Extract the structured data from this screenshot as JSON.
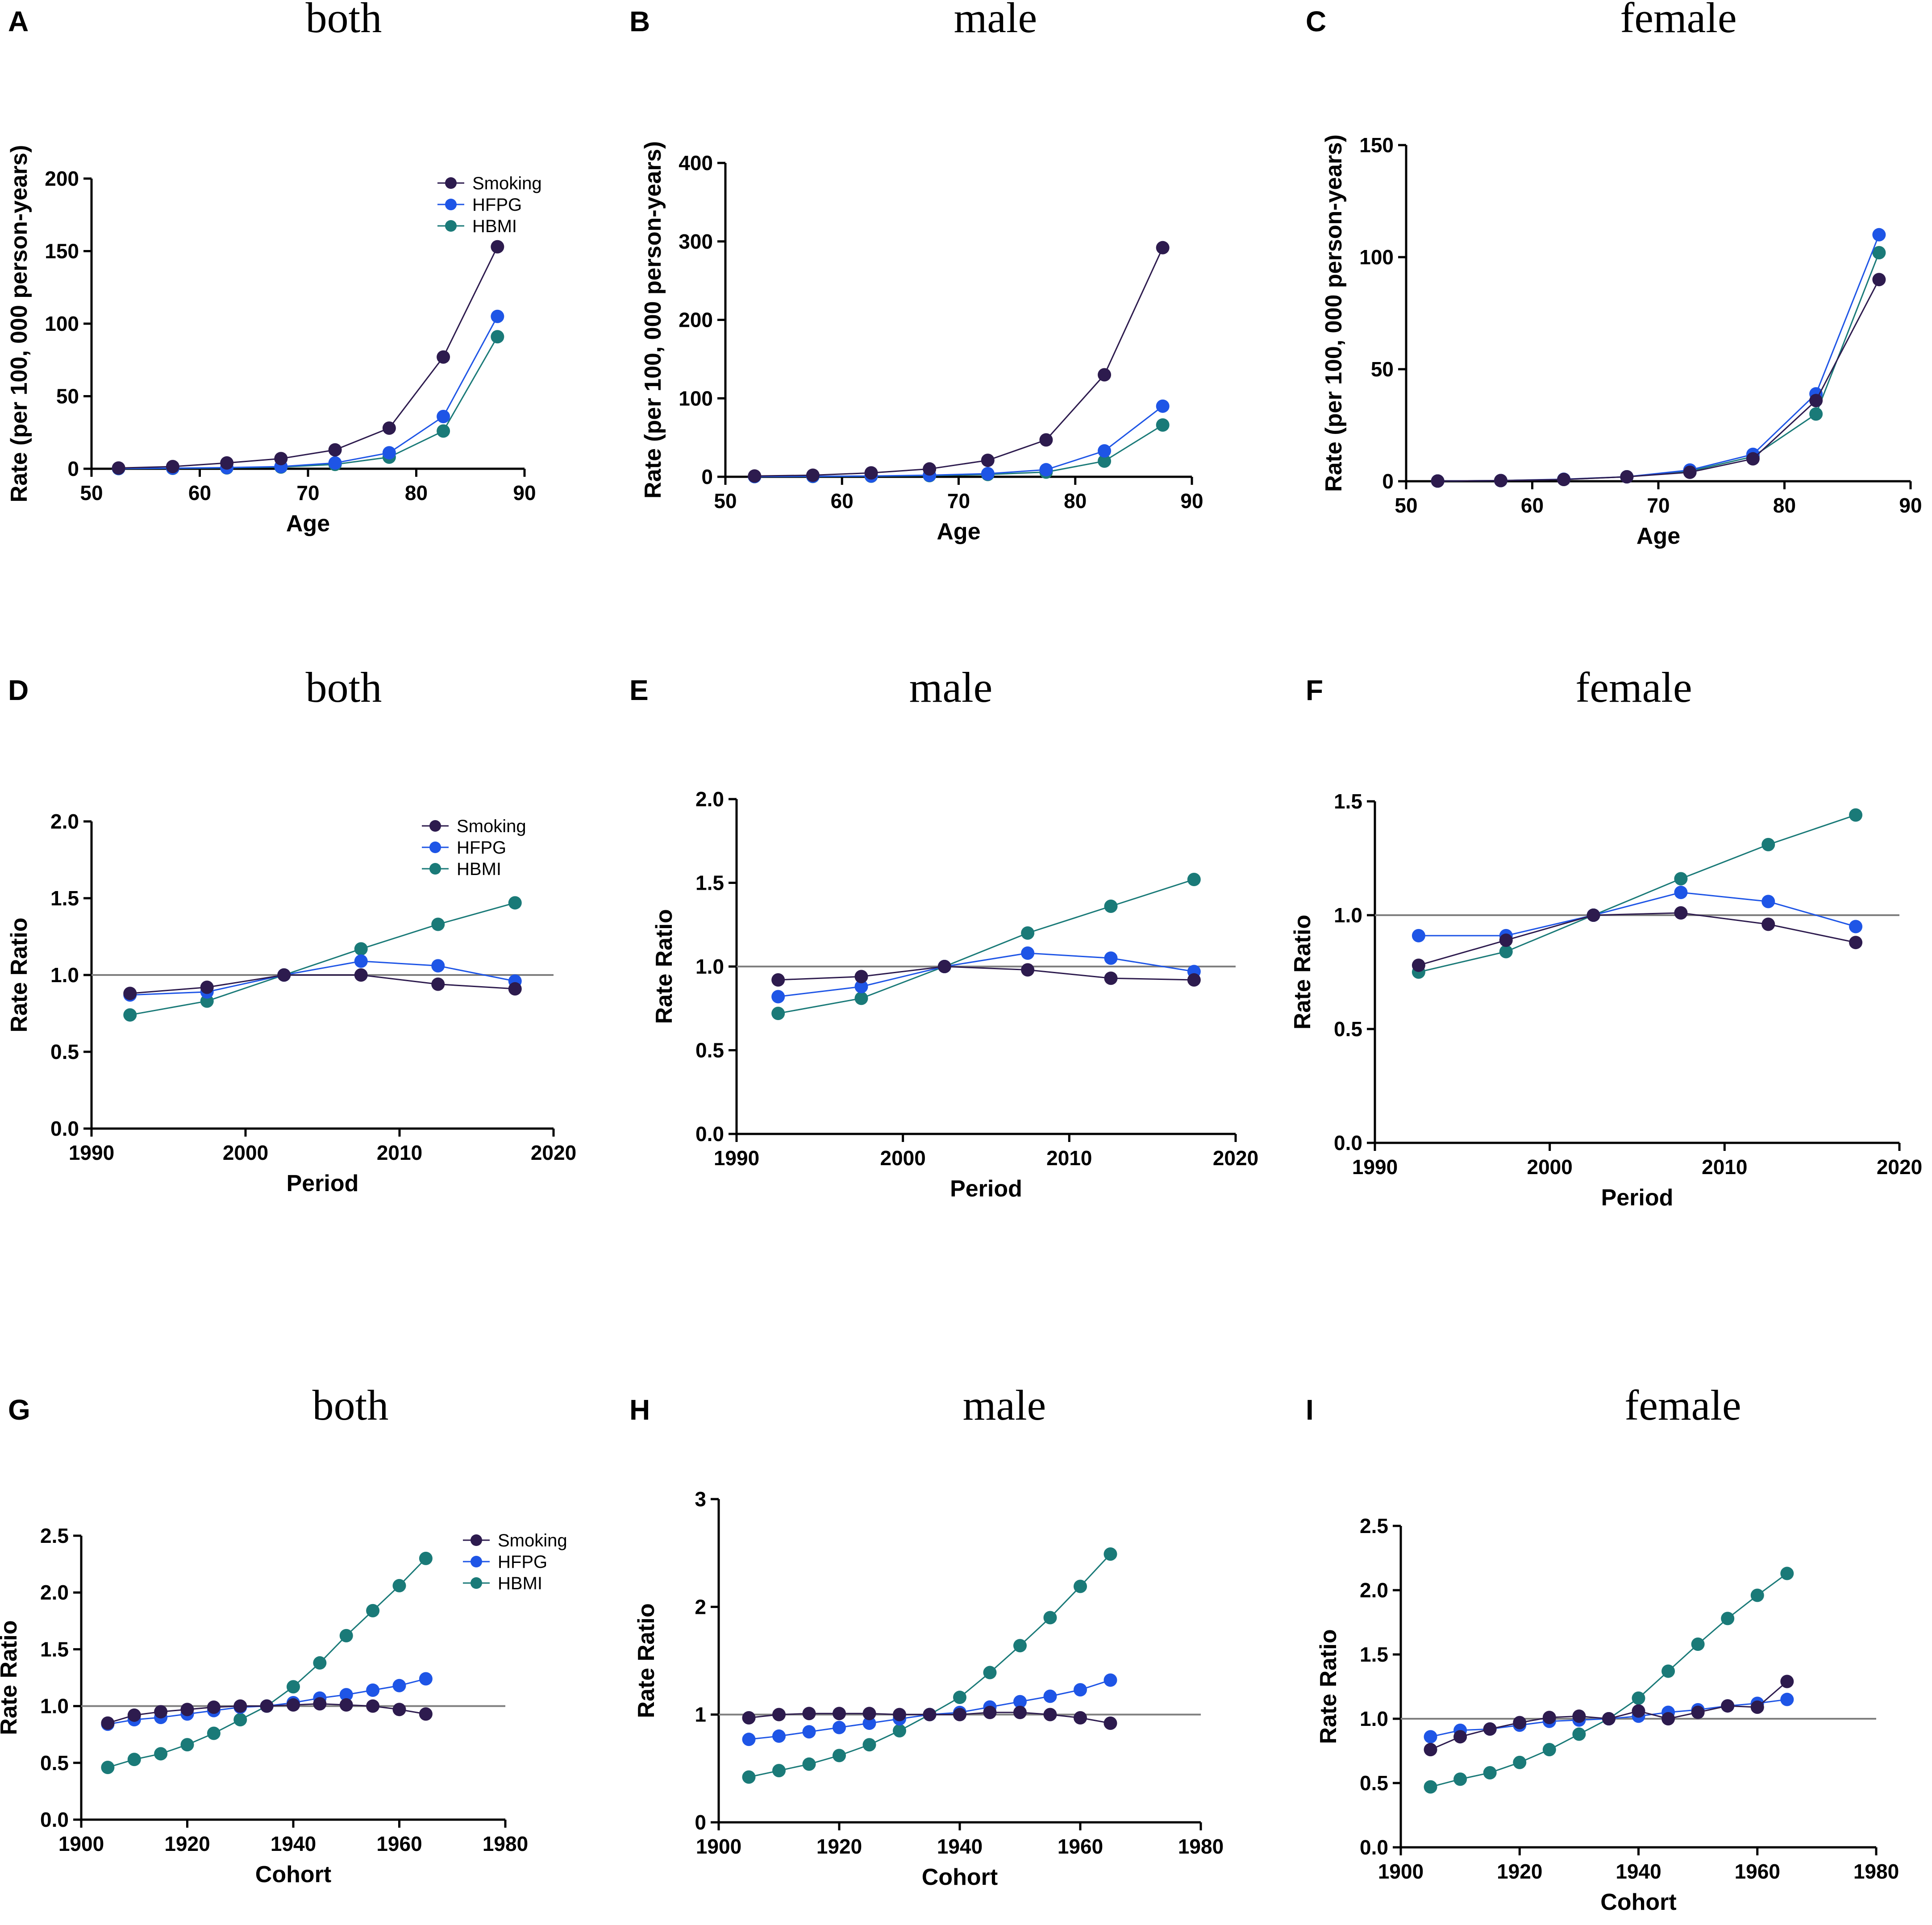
{
  "colors": {
    "Smoking": "#2d1b4e",
    "HFPG": "#1e55e6",
    "HBMI": "#1a7a78",
    "reference": "#7f7f7f"
  },
  "chart_data": [
    {
      "panel": "A",
      "title": "both",
      "type": "line",
      "xlabel": "Age",
      "ylabel": "Rate (per 100,  000 person-years)",
      "xlim": [
        50,
        90
      ],
      "xticks": [
        50,
        60,
        70,
        80,
        90
      ],
      "ylim": [
        0,
        200
      ],
      "yticks": [
        0,
        50,
        100,
        150,
        200
      ],
      "legend": "top-right",
      "x": [
        52.5,
        57.5,
        62.5,
        67.5,
        72.5,
        77.5,
        82.5,
        87.5
      ],
      "series": [
        {
          "name": "Smoking",
          "values": [
            0.5,
            1.5,
            4,
            7,
            13,
            28,
            77,
            153
          ]
        },
        {
          "name": "HFPG",
          "values": [
            0.2,
            0.4,
            0.8,
            1.5,
            4,
            11,
            36,
            105
          ]
        },
        {
          "name": "HBMI",
          "values": [
            0.1,
            0.3,
            0.6,
            1.2,
            3,
            8,
            26,
            91
          ]
        }
      ]
    },
    {
      "panel": "B",
      "title": "male",
      "type": "line",
      "xlabel": "Age",
      "ylabel": "Rate (per 100,  000 person-years)",
      "xlim": [
        50,
        90
      ],
      "xticks": [
        50,
        60,
        70,
        80,
        90
      ],
      "ylim": [
        0,
        400
      ],
      "yticks": [
        0,
        100,
        200,
        300,
        400
      ],
      "x": [
        52.5,
        57.5,
        62.5,
        67.5,
        72.5,
        77.5,
        82.5,
        87.5
      ],
      "series": [
        {
          "name": "Smoking",
          "values": [
            1,
            2,
            5,
            10,
            21,
            47,
            130,
            292
          ]
        },
        {
          "name": "HFPG",
          "values": [
            0.3,
            0.6,
            1,
            2,
            4,
            9,
            33,
            90
          ]
        },
        {
          "name": "HBMI",
          "values": [
            0.2,
            0.4,
            0.8,
            1.5,
            3,
            6,
            20,
            66
          ]
        }
      ]
    },
    {
      "panel": "C",
      "title": "female",
      "type": "line",
      "xlabel": "Age",
      "ylabel": "Rate (per 100,  000 person-years)",
      "xlim": [
        50,
        90
      ],
      "xticks": [
        50,
        60,
        70,
        80,
        90
      ],
      "ylim": [
        0,
        150
      ],
      "yticks": [
        0,
        50,
        100,
        150
      ],
      "x": [
        52.5,
        57.5,
        62.5,
        67.5,
        72.5,
        77.5,
        82.5,
        87.5
      ],
      "series": [
        {
          "name": "Smoking",
          "values": [
            0.1,
            0.3,
            0.8,
            2,
            4,
            10,
            36,
            90
          ]
        },
        {
          "name": "HFPG",
          "values": [
            0.1,
            0.3,
            0.9,
            2,
            5,
            12,
            39,
            110
          ]
        },
        {
          "name": "HBMI",
          "values": [
            0.1,
            0.3,
            0.8,
            2,
            4.5,
            11,
            30,
            102
          ]
        }
      ]
    },
    {
      "panel": "D",
      "title": "both",
      "type": "line",
      "xlabel": "Period",
      "ylabel": "Rate Ratio",
      "xlim": [
        1990,
        2020
      ],
      "xticks": [
        1990,
        2000,
        2010,
        2020
      ],
      "ylim": [
        0,
        2
      ],
      "yticks": [
        "0.0",
        "0.5",
        "1.0",
        "1.5",
        "2.0"
      ],
      "reference_line": 1.0,
      "legend": "top-right",
      "x": [
        1992.5,
        1997.5,
        2002.5,
        2007.5,
        2012.5,
        2017.5
      ],
      "series": [
        {
          "name": "Smoking",
          "values": [
            0.88,
            0.92,
            1.0,
            1.0,
            0.94,
            0.91
          ]
        },
        {
          "name": "HFPG",
          "values": [
            0.87,
            0.89,
            1.0,
            1.09,
            1.06,
            0.96
          ]
        },
        {
          "name": "HBMI",
          "values": [
            0.74,
            0.83,
            1.0,
            1.17,
            1.33,
            1.47
          ]
        }
      ]
    },
    {
      "panel": "E",
      "title": "male",
      "type": "line",
      "xlabel": "Period",
      "ylabel": "Rate Ratio",
      "xlim": [
        1990,
        2020
      ],
      "xticks": [
        1990,
        2000,
        2010,
        2020
      ],
      "ylim": [
        0,
        2
      ],
      "yticks": [
        "0.0",
        "0.5",
        "1.0",
        "1.5",
        "2.0"
      ],
      "reference_line": 1.0,
      "x": [
        1992.5,
        1997.5,
        2002.5,
        2007.5,
        2012.5,
        2017.5
      ],
      "series": [
        {
          "name": "Smoking",
          "values": [
            0.92,
            0.94,
            1.0,
            0.98,
            0.93,
            0.92
          ]
        },
        {
          "name": "HFPG",
          "values": [
            0.82,
            0.88,
            1.0,
            1.08,
            1.05,
            0.97
          ]
        },
        {
          "name": "HBMI",
          "values": [
            0.72,
            0.81,
            1.0,
            1.2,
            1.36,
            1.52
          ]
        }
      ]
    },
    {
      "panel": "F",
      "title": "female",
      "type": "line",
      "xlabel": "Period",
      "ylabel": "Rate Ratio",
      "xlim": [
        1990,
        2020
      ],
      "xticks": [
        1990,
        2000,
        2010,
        2020
      ],
      "ylim": [
        0,
        1.5
      ],
      "yticks": [
        "0.0",
        "0.5",
        "1.0",
        "1.5"
      ],
      "reference_line": 1.0,
      "x": [
        1992.5,
        1997.5,
        2002.5,
        2007.5,
        2012.5,
        2017.5
      ],
      "series": [
        {
          "name": "Smoking",
          "values": [
            0.78,
            0.89,
            1.0,
            1.01,
            0.96,
            0.88
          ]
        },
        {
          "name": "HFPG",
          "values": [
            0.91,
            0.91,
            1.0,
            1.1,
            1.06,
            0.95
          ]
        },
        {
          "name": "HBMI",
          "values": [
            0.75,
            0.84,
            1.0,
            1.16,
            1.31,
            1.44
          ]
        }
      ]
    },
    {
      "panel": "G",
      "title": "both",
      "type": "line",
      "xlabel": "Cohort",
      "ylabel": "Rate Ratio",
      "xlim": [
        1900,
        1980
      ],
      "xticks": [
        1900,
        1920,
        1940,
        1960,
        1980
      ],
      "ylim": [
        0,
        2.5
      ],
      "yticks": [
        "0.0",
        "0.5",
        "1.0",
        "1.5",
        "2.0",
        "2.5"
      ],
      "reference_line": 1.0,
      "legend": "top-right",
      "x": [
        1905,
        1910,
        1915,
        1920,
        1925,
        1930,
        1935,
        1940,
        1945,
        1950,
        1955,
        1960,
        1965
      ],
      "series": [
        {
          "name": "Smoking",
          "values": [
            0.85,
            0.92,
            0.95,
            0.97,
            0.99,
            1.0,
            1.0,
            1.01,
            1.02,
            1.01,
            1.0,
            0.97,
            0.93
          ]
        },
        {
          "name": "HFPG",
          "values": [
            0.84,
            0.88,
            0.9,
            0.93,
            0.96,
            0.99,
            1.0,
            1.03,
            1.07,
            1.1,
            1.14,
            1.18,
            1.24
          ]
        },
        {
          "name": "HBMI",
          "values": [
            0.46,
            0.53,
            0.58,
            0.66,
            0.76,
            0.88,
            1.0,
            1.17,
            1.38,
            1.62,
            1.84,
            2.06,
            2.3
          ]
        }
      ]
    },
    {
      "panel": "H",
      "title": "male",
      "type": "line",
      "xlabel": "Cohort",
      "ylabel": "Rate Ratio",
      "xlim": [
        1900,
        1980
      ],
      "xticks": [
        1900,
        1920,
        1940,
        1960,
        1980
      ],
      "ylim": [
        0,
        3
      ],
      "yticks": [
        "0",
        "1",
        "2",
        "3"
      ],
      "reference_line": 1.0,
      "x": [
        1905,
        1910,
        1915,
        1920,
        1925,
        1930,
        1935,
        1940,
        1945,
        1950,
        1955,
        1960,
        1965
      ],
      "series": [
        {
          "name": "Smoking",
          "values": [
            0.97,
            1.0,
            1.01,
            1.01,
            1.01,
            1.0,
            1.0,
            1.0,
            1.02,
            1.02,
            1.0,
            0.97,
            0.92
          ]
        },
        {
          "name": "HFPG",
          "values": [
            0.77,
            0.8,
            0.84,
            0.88,
            0.92,
            0.96,
            1.0,
            1.02,
            1.07,
            1.12,
            1.17,
            1.23,
            1.32
          ]
        },
        {
          "name": "HBMI",
          "values": [
            0.42,
            0.48,
            0.54,
            0.62,
            0.72,
            0.85,
            1.0,
            1.16,
            1.39,
            1.64,
            1.9,
            2.19,
            2.49
          ]
        }
      ]
    },
    {
      "panel": "I",
      "title": "female",
      "type": "line",
      "xlabel": "Cohort",
      "ylabel": "Rate Ratio",
      "xlim": [
        1900,
        1980
      ],
      "xticks": [
        1900,
        1920,
        1940,
        1960,
        1980
      ],
      "ylim": [
        0,
        2.5
      ],
      "yticks": [
        "0.0",
        "0.5",
        "1.0",
        "1.5",
        "2.0",
        "2.5"
      ],
      "reference_line": 1.0,
      "x": [
        1905,
        1910,
        1915,
        1920,
        1925,
        1930,
        1935,
        1940,
        1945,
        1950,
        1955,
        1960,
        1965
      ],
      "series": [
        {
          "name": "Smoking",
          "values": [
            0.76,
            0.86,
            0.92,
            0.97,
            1.01,
            1.02,
            1.0,
            1.06,
            1.0,
            1.05,
            1.1,
            1.09,
            1.29
          ]
        },
        {
          "name": "HFPG",
          "values": [
            0.86,
            0.91,
            0.92,
            0.95,
            0.98,
            0.99,
            1.0,
            1.02,
            1.05,
            1.07,
            1.1,
            1.12,
            1.15
          ]
        },
        {
          "name": "HBMI",
          "values": [
            0.47,
            0.53,
            0.58,
            0.66,
            0.76,
            0.88,
            1.0,
            1.16,
            1.37,
            1.58,
            1.78,
            1.96,
            2.13
          ]
        }
      ]
    }
  ]
}
